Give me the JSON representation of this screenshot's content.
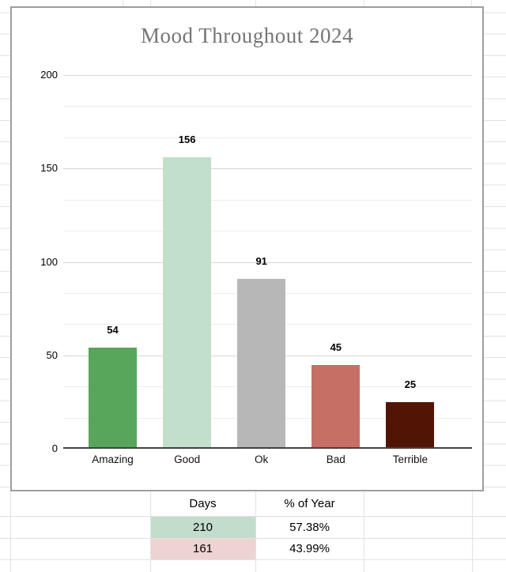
{
  "chart_data": {
    "type": "bar",
    "title": "Mood Throughout 2024",
    "categories": [
      "Amazing",
      "Good",
      "Ok",
      "Bad",
      "Terrible"
    ],
    "values": [
      54,
      156,
      91,
      45,
      25
    ],
    "data_labels": [
      "54",
      "156",
      "91",
      "45",
      "25"
    ],
    "bar_colors": [
      "#58a55c",
      "#c2dfcc",
      "#b7b7b7",
      "#c66f64",
      "#521505"
    ],
    "xlabel": "",
    "ylabel": "",
    "ylim": [
      0,
      200
    ],
    "yticks": [
      0,
      50,
      100,
      150,
      200
    ],
    "minor_divisions_per_major": 3,
    "grid": "on",
    "legend": "none",
    "title_color": "#757575"
  },
  "summary_table": {
    "headers": [
      "Days",
      "% of Year"
    ],
    "rows": [
      {
        "days": "210",
        "percent": "57.38%",
        "days_bg": "#c3ddcc"
      },
      {
        "days": "161",
        "percent": "43.99%",
        "days_bg": "#edd3d1"
      }
    ]
  }
}
